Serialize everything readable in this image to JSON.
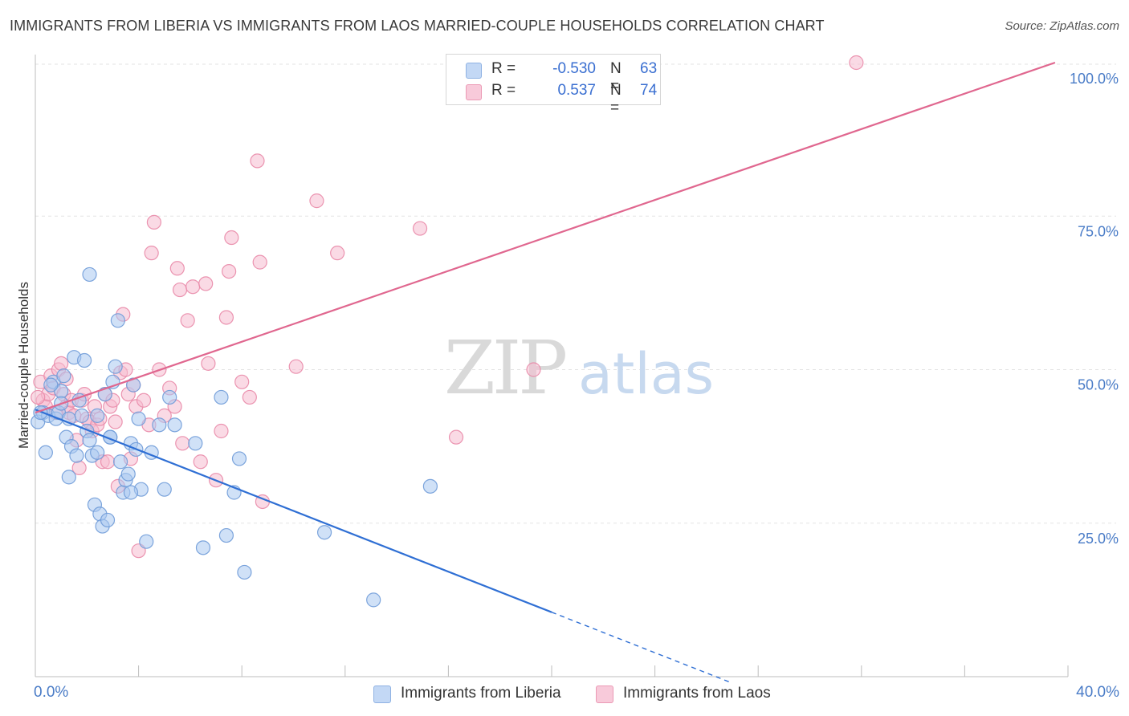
{
  "title": "IMMIGRANTS FROM LIBERIA VS IMMIGRANTS FROM LAOS MARRIED-COUPLE HOUSEHOLDS CORRELATION CHART",
  "source": "Source: ZipAtlas.com",
  "watermark": {
    "zip": "ZIP",
    "atlas": "atlas"
  },
  "legend": {
    "series1": {
      "r_label": "R =",
      "r_value": "-0.530",
      "n_label": "N =",
      "n_value": "63"
    },
    "series2": {
      "r_label": "R =",
      "r_value": "0.537",
      "n_label": "N =",
      "n_value": "74"
    }
  },
  "colors": {
    "liberia_fill": "#a9c8f0",
    "liberia_stroke": "#6f9bd8",
    "liberia_line": "#2f6fd4",
    "laos_fill": "#f6bcd0",
    "laos_stroke": "#e98aa9",
    "laos_line": "#e0678f",
    "grid": "#e3e3e3",
    "tick_text": "#4a7cc7"
  },
  "chart_data": {
    "type": "scatter",
    "title": "IMMIGRANTS FROM LIBERIA VS IMMIGRANTS FROM LAOS MARRIED-COUPLE HOUSEHOLDS CORRELATION CHART",
    "xlabel": "",
    "ylabel": "Married-couple Households",
    "xlim": [
      0,
      40
    ],
    "ylim": [
      0,
      100
    ],
    "x_tick_labels": [
      "0.0%",
      "40.0%"
    ],
    "y_ticks": [
      25,
      50,
      75,
      100
    ],
    "y_tick_labels": [
      "25.0%",
      "50.0%",
      "75.0%",
      "100.0%"
    ],
    "grid": true,
    "legend_position": "top-center",
    "series": [
      {
        "name": "Immigrants from Liberia",
        "r": -0.53,
        "n": 63,
        "trend": {
          "x0": 0,
          "y0": 43.5,
          "x1": 20,
          "y1": 10.5,
          "dashed_to_x": 27
        },
        "points": [
          [
            0.1,
            41.5
          ],
          [
            0.3,
            43
          ],
          [
            0.5,
            42.5
          ],
          [
            0.7,
            48
          ],
          [
            0.4,
            36.5
          ],
          [
            0.8,
            42
          ],
          [
            1.0,
            46.5
          ],
          [
            1.1,
            49
          ],
          [
            0.9,
            43
          ],
          [
            1.2,
            39
          ],
          [
            1.3,
            32.5
          ],
          [
            1.4,
            37.5
          ],
          [
            1.5,
            52
          ],
          [
            1.6,
            36
          ],
          [
            1.7,
            45
          ],
          [
            1.8,
            42.5
          ],
          [
            1.9,
            51.5
          ],
          [
            2.0,
            40
          ],
          [
            2.1,
            38.5
          ],
          [
            2.2,
            36
          ],
          [
            2.3,
            28
          ],
          [
            2.4,
            36.5
          ],
          [
            2.5,
            26.5
          ],
          [
            2.6,
            24.5
          ],
          [
            2.7,
            46
          ],
          [
            2.8,
            25.5
          ],
          [
            2.9,
            39
          ],
          [
            3.0,
            48
          ],
          [
            3.1,
            50.5
          ],
          [
            3.2,
            58
          ],
          [
            3.3,
            35
          ],
          [
            3.4,
            30
          ],
          [
            3.5,
            32
          ],
          [
            3.6,
            33
          ],
          [
            3.7,
            38
          ],
          [
            3.8,
            47.5
          ],
          [
            3.9,
            37
          ],
          [
            4.1,
            30.5
          ],
          [
            4.3,
            22
          ],
          [
            4.5,
            36.5
          ],
          [
            4.8,
            41
          ],
          [
            5.0,
            30.5
          ],
          [
            5.2,
            45.5
          ],
          [
            5.4,
            41
          ],
          [
            6.2,
            38
          ],
          [
            6.5,
            21
          ],
          [
            7.2,
            45.5
          ],
          [
            7.4,
            23
          ],
          [
            7.7,
            30
          ],
          [
            7.9,
            35.5
          ],
          [
            8.1,
            17
          ],
          [
            11.2,
            23.5
          ],
          [
            13.1,
            12.5
          ],
          [
            15.3,
            31
          ],
          [
            2.1,
            65.5
          ],
          [
            0.2,
            43
          ],
          [
            0.6,
            47.5
          ],
          [
            1.0,
            44.5
          ],
          [
            1.3,
            42
          ],
          [
            2.4,
            42.5
          ],
          [
            2.9,
            39
          ],
          [
            4.0,
            42
          ],
          [
            3.7,
            30
          ]
        ]
      },
      {
        "name": "Immigrants from Laos",
        "r": 0.537,
        "n": 74,
        "trend": {
          "x0": 0,
          "y0": 43,
          "x1": 39.5,
          "y1": 100
        },
        "points": [
          [
            0.2,
            48
          ],
          [
            0.3,
            45
          ],
          [
            0.4,
            44
          ],
          [
            0.5,
            46
          ],
          [
            0.6,
            49
          ],
          [
            0.7,
            47
          ],
          [
            0.8,
            43
          ],
          [
            0.9,
            50
          ],
          [
            1.0,
            51
          ],
          [
            1.1,
            46
          ],
          [
            1.2,
            44
          ],
          [
            1.3,
            43
          ],
          [
            1.4,
            45
          ],
          [
            1.5,
            42.5
          ],
          [
            1.6,
            38.5
          ],
          [
            1.7,
            34
          ],
          [
            1.8,
            45
          ],
          [
            1.9,
            46
          ],
          [
            2.0,
            42
          ],
          [
            2.1,
            41.5
          ],
          [
            2.2,
            40
          ],
          [
            2.3,
            44
          ],
          [
            2.4,
            41
          ],
          [
            2.5,
            42
          ],
          [
            2.6,
            35
          ],
          [
            2.7,
            46
          ],
          [
            2.8,
            35
          ],
          [
            2.9,
            44
          ],
          [
            3.0,
            45
          ],
          [
            3.1,
            41.5
          ],
          [
            3.2,
            31
          ],
          [
            3.3,
            49.5
          ],
          [
            3.4,
            59
          ],
          [
            3.5,
            50
          ],
          [
            3.6,
            46
          ],
          [
            3.7,
            35.5
          ],
          [
            3.8,
            47.5
          ],
          [
            3.9,
            44
          ],
          [
            4.0,
            20.5
          ],
          [
            4.2,
            45
          ],
          [
            4.4,
            41
          ],
          [
            4.5,
            69
          ],
          [
            4.6,
            74
          ],
          [
            4.8,
            50
          ],
          [
            5.0,
            42.5
          ],
          [
            5.2,
            47
          ],
          [
            5.4,
            44
          ],
          [
            5.5,
            66.5
          ],
          [
            5.6,
            63
          ],
          [
            5.7,
            38
          ],
          [
            5.9,
            58
          ],
          [
            6.1,
            63.5
          ],
          [
            6.4,
            35
          ],
          [
            6.6,
            64
          ],
          [
            6.7,
            51
          ],
          [
            7.0,
            32
          ],
          [
            7.2,
            40
          ],
          [
            7.4,
            58.5
          ],
          [
            7.5,
            66
          ],
          [
            7.6,
            71.5
          ],
          [
            8.0,
            48
          ],
          [
            8.3,
            45.5
          ],
          [
            8.6,
            84
          ],
          [
            8.7,
            67.5
          ],
          [
            8.8,
            28.5
          ],
          [
            10.1,
            50.5
          ],
          [
            10.9,
            77.5
          ],
          [
            11.7,
            69
          ],
          [
            14.9,
            73
          ],
          [
            16.3,
            39
          ],
          [
            19.3,
            50
          ],
          [
            31.8,
            100
          ],
          [
            0.1,
            45.5
          ],
          [
            1.2,
            48.5
          ]
        ]
      }
    ]
  },
  "bottom_legend": [
    {
      "label": "Immigrants from Liberia"
    },
    {
      "label": "Immigrants from Laos"
    }
  ]
}
